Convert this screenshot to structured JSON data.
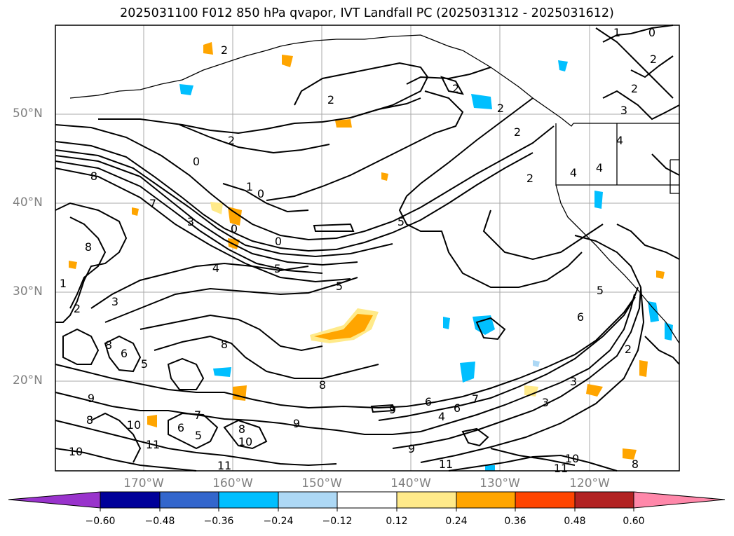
{
  "title": "2025031100 F012 850 hPa qvapor, IVT Landfall PC (2025031312 - 2025031612)",
  "lat_labels": [
    "50°N",
    "40°N",
    "30°N",
    "20°N"
  ],
  "lon_labels": [
    "170°W",
    "160°W",
    "150°W",
    "140°W",
    "130°W",
    "120°W"
  ],
  "contour_labels": [
    "2",
    "0",
    "2",
    "2",
    "2",
    "2",
    "2",
    "1",
    "3",
    "0",
    "4",
    "4",
    "2",
    "2",
    "2",
    "1",
    "0",
    "4",
    "7",
    "8",
    "3",
    "0",
    "5",
    "0",
    "5",
    "4",
    "5",
    "8",
    "1",
    "3",
    "2",
    "8",
    "6",
    "8",
    "5",
    "8",
    "9",
    "8",
    "9",
    "9",
    "10",
    "6",
    "5",
    "7",
    "8",
    "10",
    "9",
    "10",
    "11",
    "11",
    "5",
    "6",
    "6",
    "2",
    "4",
    "6",
    "3",
    "7",
    "3",
    "11",
    "10",
    "8",
    "11"
  ],
  "colorbar": {
    "colors": [
      "#9933cc",
      "#000099",
      "#3366cc",
      "#00bfff",
      "#add8f5",
      "#ffffff",
      "#ffea8a",
      "#ffa500",
      "#ff4500",
      "#b22222",
      "#ff88aa"
    ],
    "ticks": [
      "−0.60",
      "−0.48",
      "−0.36",
      "−0.24",
      "−0.12",
      "0.12",
      "0.24",
      "0.36",
      "0.48",
      "0.60"
    ]
  },
  "colors": {
    "grid": "#999999",
    "axis_label": "#808080",
    "contour": "#000000"
  }
}
